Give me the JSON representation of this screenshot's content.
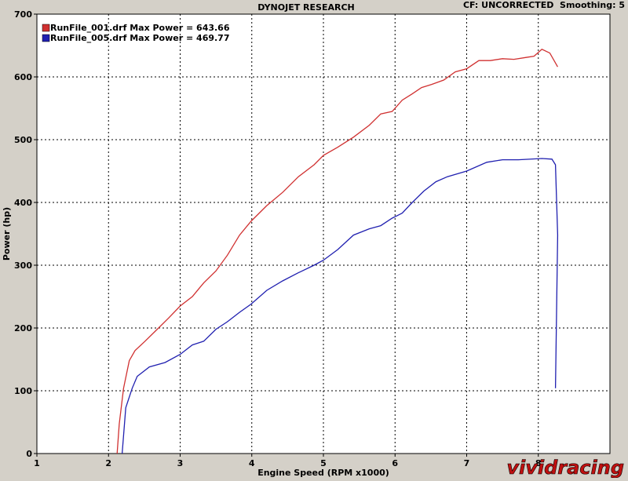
{
  "chart_data": {
    "type": "line",
    "title": "DYNOJET RESEARCH",
    "subtitle": "CF: UNCORRECTED  Smoothing: 5",
    "x_label": "Engine Speed (RPM x1000)",
    "y_label": "Power (hp)",
    "watermark": "vividracing",
    "xlim": [
      1,
      9
    ],
    "xticks": [
      1,
      2,
      3,
      4,
      5,
      6,
      7,
      8
    ],
    "ylim": [
      0,
      700
    ],
    "yticks": [
      0,
      100,
      200,
      300,
      400,
      500,
      600,
      700
    ],
    "grid": true,
    "series": [
      {
        "name": "RunFile_001.drf Max Power = 643.66",
        "color": "#d03030",
        "x": [
          2.12,
          2.15,
          2.21,
          2.29,
          2.37,
          2.51,
          2.68,
          2.84,
          3.0,
          3.17,
          3.33,
          3.5,
          3.66,
          3.83,
          3.99,
          4.21,
          4.43,
          4.65,
          4.87,
          5.0,
          5.2,
          5.42,
          5.64,
          5.8,
          5.96,
          6.1,
          6.24,
          6.37,
          6.51,
          6.68,
          6.84,
          7.0,
          7.17,
          7.33,
          7.5,
          7.66,
          7.83,
          7.94,
          8.05,
          8.16,
          8.27
        ],
        "values": [
          0,
          47,
          104,
          148,
          164,
          179,
          198,
          216,
          235,
          250,
          272,
          291,
          316,
          348,
          370,
          395,
          416,
          441,
          460,
          475,
          488,
          504,
          523,
          541,
          545,
          563,
          573,
          583,
          588,
          595,
          608,
          613,
          626,
          626,
          629,
          628,
          631,
          633,
          644,
          638,
          616
        ]
      },
      {
        "name": "RunFile_005.drf Max Power = 469.77",
        "color": "#2020b0",
        "x": [
          2.19,
          2.24,
          2.33,
          2.4,
          2.57,
          2.79,
          3.0,
          3.17,
          3.33,
          3.5,
          3.66,
          3.83,
          3.99,
          4.21,
          4.43,
          4.65,
          4.87,
          5.0,
          5.2,
          5.42,
          5.64,
          5.8,
          5.96,
          6.1,
          6.24,
          6.4,
          6.57,
          6.73,
          7.0,
          7.28,
          7.5,
          7.72,
          8.05,
          8.19,
          8.24,
          8.27,
          8.24
        ],
        "values": [
          0,
          73,
          104,
          123,
          138,
          145,
          158,
          173,
          179,
          198,
          210,
          225,
          238,
          260,
          275,
          288,
          300,
          308,
          325,
          348,
          358,
          363,
          375,
          383,
          400,
          418,
          433,
          441,
          450,
          464,
          468,
          468,
          470,
          469,
          460,
          348,
          104
        ]
      }
    ]
  }
}
